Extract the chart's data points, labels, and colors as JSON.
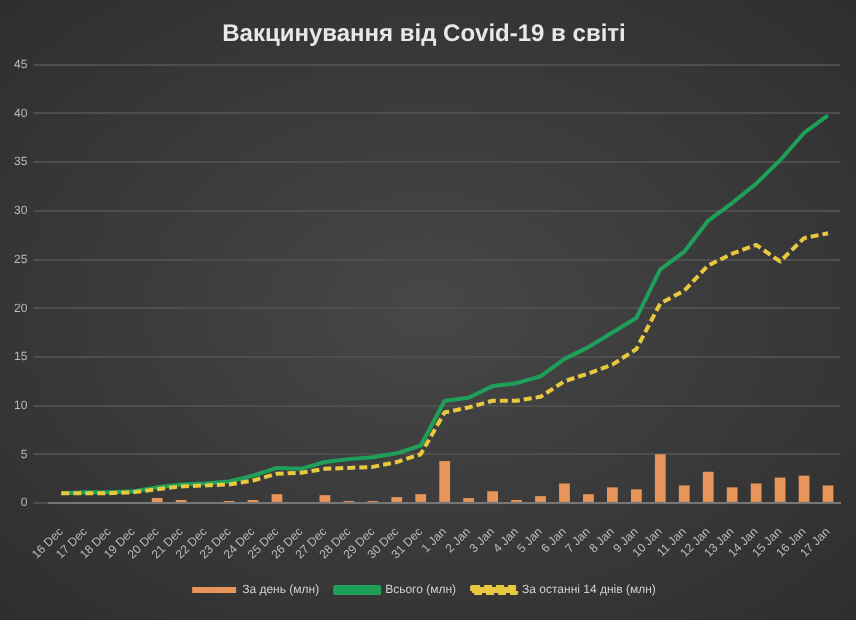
{
  "chart_data": {
    "type": "bar",
    "title": "Вакцинування від Covid-19 в світі",
    "categories": [
      "16 Dec",
      "17 Dec",
      "18 Dec",
      "19 Dec",
      "20 Dec",
      "21 Dec",
      "22 Dec",
      "23 Dec",
      "24 Dec",
      "25 Dec",
      "26 Dec",
      "27 Dec",
      "28 Dec",
      "29 Dec",
      "30 Dec",
      "31 Dec",
      "1 Jan",
      "2 Jan",
      "3 Jan",
      "4 Jan",
      "5 Jan",
      "6 Jan",
      "7 Jan",
      "8 Jan",
      "9 Jan",
      "10 Jan",
      "11 Jan",
      "12 Jan",
      "13 Jan",
      "14 Jan",
      "15 Jan",
      "16 Jan",
      "17 Jan"
    ],
    "series": [
      {
        "name": "За день (млн)",
        "color": "#e8955a",
        "values": [
          null,
          null,
          null,
          null,
          0.5,
          0.3,
          null,
          0.2,
          0.3,
          0.9,
          0.0,
          0.8,
          0.2,
          0.2,
          0.6,
          0.9,
          4.3,
          0.5,
          1.2,
          0.3,
          0.7,
          2.0,
          0.9,
          1.6,
          1.4,
          5.0,
          1.8,
          3.2,
          1.6,
          2.0,
          2.6,
          2.8,
          1.8
        ]
      },
      {
        "name": "Всього (млн)",
        "type": "line",
        "color": "#1fa05a",
        "line_style": "solid",
        "values": [
          1.0,
          1.1,
          1.1,
          1.2,
          1.6,
          1.9,
          2.0,
          2.2,
          2.8,
          3.6,
          3.5,
          4.2,
          4.5,
          4.7,
          5.1,
          5.9,
          10.5,
          10.8,
          12.0,
          12.3,
          13.0,
          14.8,
          16.0,
          17.5,
          19.0,
          24.0,
          25.8,
          29.0,
          30.8,
          32.8,
          35.2,
          38.0,
          39.8
        ]
      },
      {
        "name": "За останні 14 днів (млн)",
        "type": "line",
        "color": "#e8c840",
        "line_style": "dashed",
        "values": [
          1.0,
          1.0,
          1.0,
          1.1,
          1.4,
          1.7,
          1.8,
          1.9,
          2.3,
          3.0,
          3.1,
          3.5,
          3.6,
          3.7,
          4.2,
          5.0,
          9.3,
          9.8,
          10.5,
          10.5,
          10.9,
          12.5,
          13.3,
          14.2,
          15.8,
          20.5,
          21.8,
          24.4,
          25.6,
          26.5,
          24.8,
          27.2,
          27.7
        ]
      }
    ],
    "ylim": [
      0,
      45
    ],
    "yticks": [
      0,
      5,
      10,
      15,
      20,
      25,
      30,
      35,
      40,
      45
    ],
    "grid": "y",
    "legend": "bottom",
    "marker": "none"
  }
}
